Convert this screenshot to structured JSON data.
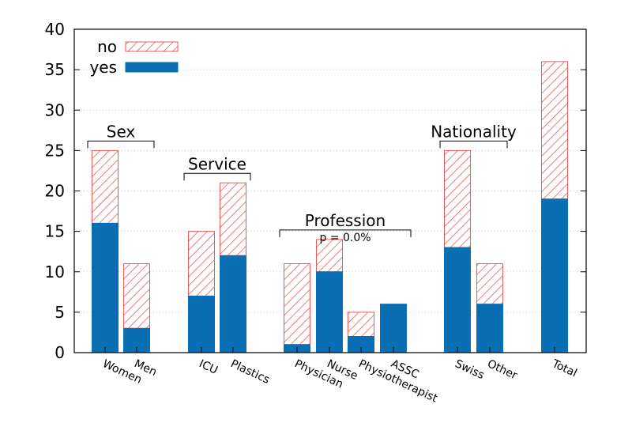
{
  "chart_data": {
    "type": "bar",
    "stacked": true,
    "categories": [
      "Women",
      "Men",
      "ICU",
      "Plastics",
      "Physician",
      "Nurse",
      "Physiotherapist",
      "ASSC",
      "Swiss",
      "Other",
      "Total"
    ],
    "series": [
      {
        "name": "yes",
        "color": "#0a6eb3",
        "pattern": "solid",
        "values": [
          16,
          3,
          7,
          12,
          1,
          10,
          2,
          6,
          13,
          6,
          19
        ]
      },
      {
        "name": "no",
        "color": "#ee5a5a",
        "pattern": "hatched",
        "values": [
          9,
          8,
          8,
          9,
          10,
          4,
          3,
          0,
          12,
          5,
          17
        ]
      }
    ],
    "legend_order": [
      "no",
      "yes"
    ],
    "legend_position": "top-left",
    "ylim": [
      0,
      40
    ],
    "yticks": [
      "0",
      "5",
      "10",
      "15",
      "20",
      "25",
      "30",
      "35",
      "40"
    ],
    "grid": "horizontal dotted",
    "groups": [
      {
        "label": "Sex",
        "from": 0,
        "to": 1
      },
      {
        "label": "Service",
        "from": 2,
        "to": 3
      },
      {
        "label": "Profession",
        "from": 4,
        "to": 7,
        "note": "p = 0.0%"
      },
      {
        "label": "Nationality",
        "from": 8,
        "to": 9
      }
    ],
    "title": "",
    "xlabel": "",
    "ylabel": ""
  }
}
